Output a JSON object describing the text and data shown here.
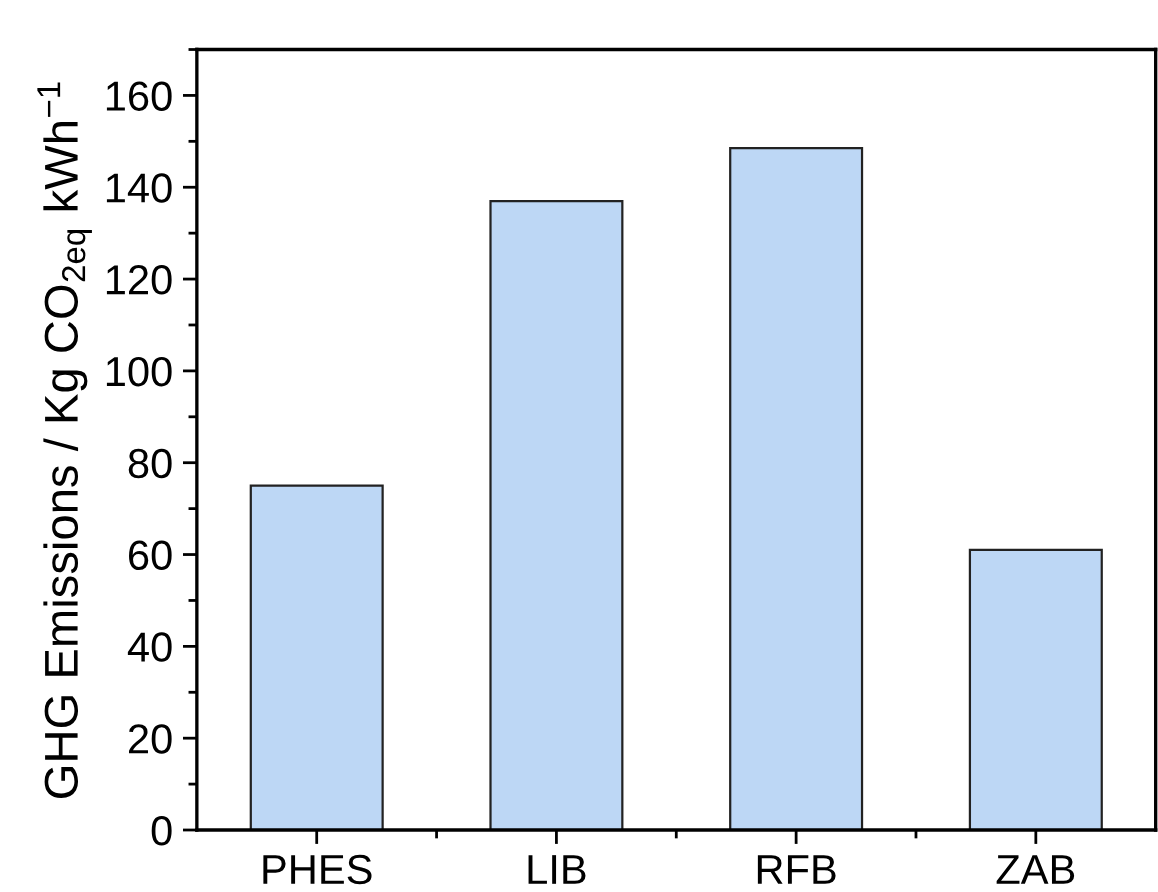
{
  "chart_data": {
    "type": "bar",
    "ylabel": "GHG Emissions / Kg CO$_{2eq}$ kWh$^{−1}$",
    "categories": [
      "PHES",
      "LIB",
      "RFB",
      "ZAB"
    ],
    "values": [
      75,
      137,
      148.5,
      61
    ],
    "color": "#bdd7f5",
    "ylim": [
      0,
      170
    ],
    "yticks": [
      0,
      20,
      40,
      60,
      80,
      100,
      120,
      140,
      160
    ],
    "grid": false
  }
}
